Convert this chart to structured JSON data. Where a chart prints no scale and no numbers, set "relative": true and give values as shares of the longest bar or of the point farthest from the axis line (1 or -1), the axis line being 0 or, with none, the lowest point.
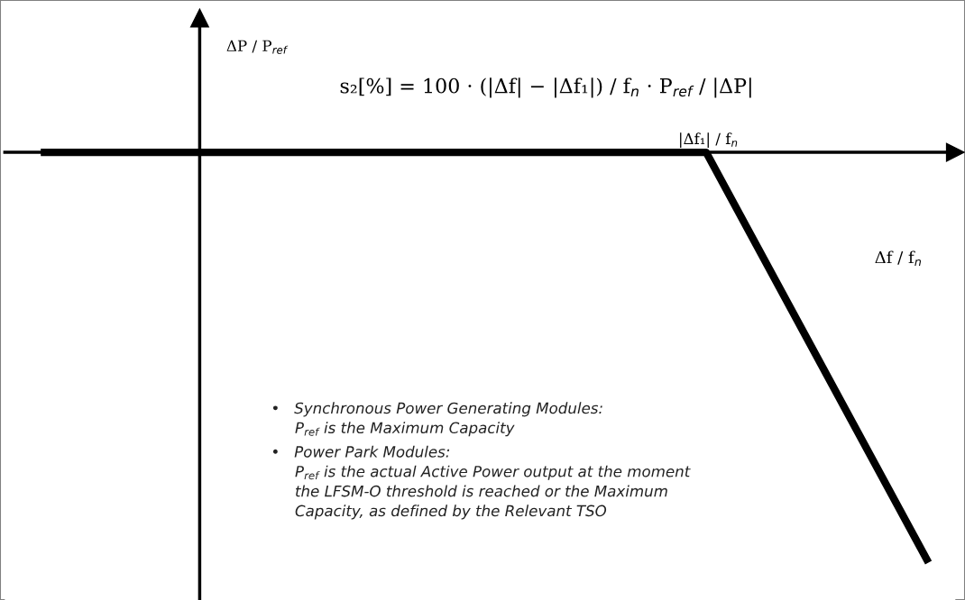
{
  "chart_data": {
    "type": "line",
    "relative": true,
    "title": "s₂[%] = 100 · (|Δf| − |Δf₁|) / f$_{n}$ · P$_{ref}$ / |ΔP|",
    "xlabel": "Δf / f$_{n}$",
    "categories": [
      null,
      null,
      null,
      null,
      null
    ],
    "series": [
      {
        "color": "#000000",
        "values": [
          0,
          0,
          0,
          0,
          -1
        ]
      }
    ],
    "line_style": "solid",
    "marker": "none",
    "grid": false,
    "legend": false,
    "annotations": [
      "ΔP / P$_{ref}$",
      "|Δf₁| / f$_{n}$",
      "•   Synchronous Power Generating Modules:\n     P$_{ref}$ is the Maximum Capacity",
      "•   Power Park Modules:\n     P$_{ref}$ is the actual Active Power output at the moment\n     the LFSM-O threshold is reached or the Maximum\n     Capacity, as defined by the Relevant TSO"
    ]
  }
}
